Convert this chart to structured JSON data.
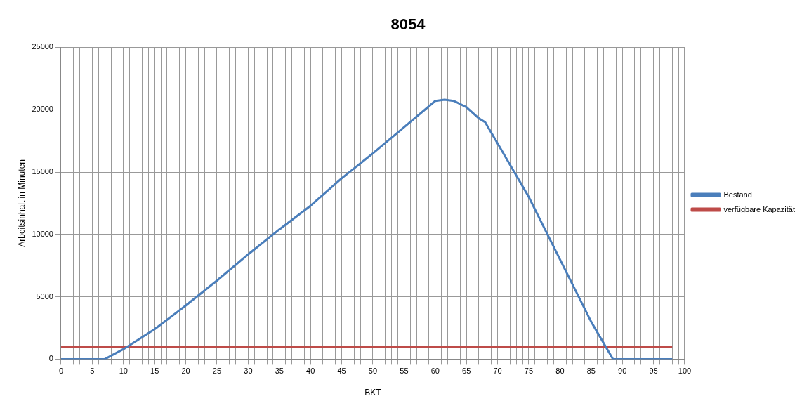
{
  "chart_data": {
    "type": "line",
    "title": "8054",
    "xlabel": "BKT",
    "ylabel": "Arbeitsinhalt in Minuten",
    "xlim": [
      0,
      100
    ],
    "ylim": [
      0,
      25000
    ],
    "xticks": [
      0,
      {
        "value": 1,
        "label": null
      },
      {
        "value": 2,
        "label": null
      },
      {
        "value": 3,
        "label": null
      },
      {
        "value": 4,
        "label": null
      },
      5,
      {
        "value": 6,
        "label": null
      },
      {
        "value": 7,
        "label": null
      },
      {
        "value": 8,
        "label": null
      },
      {
        "value": 9,
        "label": null
      },
      10,
      {
        "value": 11,
        "label": null
      },
      {
        "value": 12,
        "label": null
      },
      {
        "value": 13,
        "label": null
      },
      {
        "value": 14,
        "label": null
      },
      15,
      {
        "value": 16,
        "label": null
      },
      {
        "value": 17,
        "label": null
      },
      {
        "value": 18,
        "label": null
      },
      {
        "value": 19,
        "label": null
      },
      20,
      {
        "value": 21,
        "label": null
      },
      {
        "value": 22,
        "label": null
      },
      {
        "value": 23,
        "label": null
      },
      {
        "value": 24,
        "label": null
      },
      25,
      {
        "value": 26,
        "label": null
      },
      {
        "value": 27,
        "label": null
      },
      {
        "value": 28,
        "label": null
      },
      {
        "value": 29,
        "label": null
      },
      30,
      {
        "value": 31,
        "label": null
      },
      {
        "value": 32,
        "label": null
      },
      {
        "value": 33,
        "label": null
      },
      {
        "value": 34,
        "label": null
      },
      35,
      {
        "value": 36,
        "label": null
      },
      {
        "value": 37,
        "label": null
      },
      {
        "value": 38,
        "label": null
      },
      {
        "value": 39,
        "label": null
      },
      40,
      {
        "value": 41,
        "label": null
      },
      {
        "value": 42,
        "label": null
      },
      {
        "value": 43,
        "label": null
      },
      {
        "value": 44,
        "label": null
      },
      45,
      {
        "value": 46,
        "label": null
      },
      {
        "value": 47,
        "label": null
      },
      {
        "value": 48,
        "label": null
      },
      {
        "value": 49,
        "label": null
      },
      50,
      {
        "value": 51,
        "label": null
      },
      {
        "value": 52,
        "label": null
      },
      {
        "value": 53,
        "label": null
      },
      {
        "value": 54,
        "label": null
      },
      55,
      {
        "value": 56,
        "label": null
      },
      {
        "value": 57,
        "label": null
      },
      {
        "value": 58,
        "label": null
      },
      {
        "value": 59,
        "label": null
      },
      60,
      {
        "value": 61,
        "label": null
      },
      {
        "value": 62,
        "label": null
      },
      {
        "value": 63,
        "label": null
      },
      {
        "value": 64,
        "label": null
      },
      65,
      {
        "value": 66,
        "label": null
      },
      {
        "value": 67,
        "label": null
      },
      {
        "value": 68,
        "label": null
      },
      {
        "value": 69,
        "label": null
      },
      70,
      {
        "value": 71,
        "label": null
      },
      {
        "value": 72,
        "label": null
      },
      {
        "value": 73,
        "label": null
      },
      {
        "value": 74,
        "label": null
      },
      75,
      {
        "value": 76,
        "label": null
      },
      {
        "value": 77,
        "label": null
      },
      {
        "value": 78,
        "label": null
      },
      {
        "value": 79,
        "label": null
      },
      80,
      {
        "value": 81,
        "label": null
      },
      {
        "value": 82,
        "label": null
      },
      {
        "value": 83,
        "label": null
      },
      {
        "value": 84,
        "label": null
      },
      85,
      {
        "value": 86,
        "label": null
      },
      {
        "value": 87,
        "label": null
      },
      {
        "value": 88,
        "label": null
      },
      {
        "value": 89,
        "label": null
      },
      90,
      {
        "value": 91,
        "label": null
      },
      {
        "value": 92,
        "label": null
      },
      {
        "value": 93,
        "label": null
      },
      {
        "value": 94,
        "label": null
      },
      95,
      {
        "value": 96,
        "label": null
      },
      {
        "value": 97,
        "label": null
      },
      {
        "value": 98,
        "label": null
      },
      {
        "value": 99,
        "label": null
      },
      100
    ],
    "yticks": [
      0,
      5000,
      10000,
      15000,
      20000,
      25000
    ],
    "grid": true,
    "legend": "right",
    "marker": "none",
    "line_style": "solid",
    "series": [
      {
        "name": "Bestand",
        "color": "#4a7ebb",
        "x": [
          0,
          7,
          10,
          15,
          20,
          25,
          30,
          35,
          40,
          45,
          50,
          55,
          60,
          61.5,
          63,
          65,
          67,
          68,
          70,
          75,
          80,
          85,
          88.5,
          98
        ],
        "values": [
          0,
          0,
          800,
          2400,
          4300,
          6300,
          8400,
          10400,
          12300,
          14500,
          16500,
          18600,
          20700,
          20800,
          20700,
          20200,
          19300,
          19000,
          17300,
          13000,
          8000,
          3000,
          0,
          0
        ]
      },
      {
        "name": "verfügbare Kapazität",
        "color": "#be4b48",
        "x": [
          0,
          98
        ],
        "values": [
          1000,
          1000
        ]
      }
    ]
  }
}
